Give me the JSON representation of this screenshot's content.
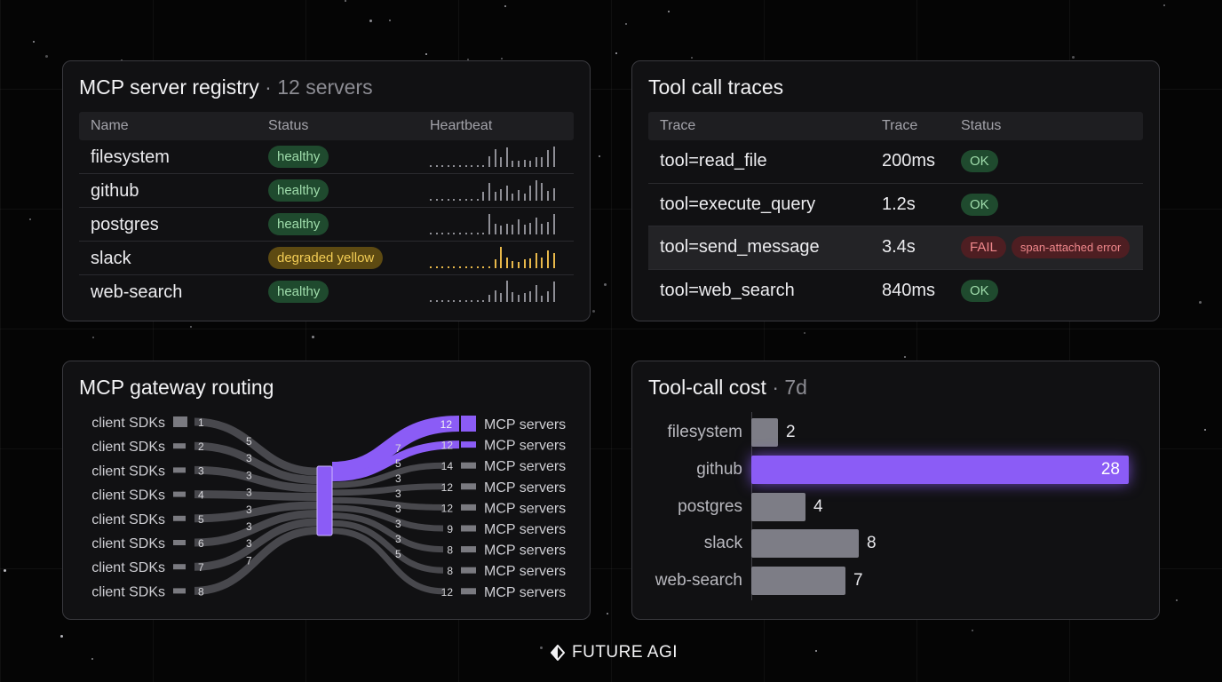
{
  "registry": {
    "title": "MCP server registry",
    "subtitle": "· 12 servers",
    "columns": [
      "Name",
      "Status",
      "Heartbeat"
    ],
    "rows": [
      {
        "name": "filesystem",
        "status": "healthy",
        "tone": "green",
        "heartbeat": [
          0.08,
          0.08,
          0.08,
          0.08,
          0.08,
          0.08,
          0.08,
          0.08,
          0.08,
          0.08,
          0.5,
          0.85,
          0.45,
          0.9,
          0.3,
          0.3,
          0.35,
          0.3,
          0.45,
          0.45,
          0.8,
          0.95
        ]
      },
      {
        "name": "github",
        "status": "healthy",
        "tone": "green",
        "heartbeat": [
          0.08,
          0.08,
          0.08,
          0.08,
          0.08,
          0.08,
          0.08,
          0.08,
          0.08,
          0.4,
          0.85,
          0.4,
          0.55,
          0.7,
          0.35,
          0.5,
          0.35,
          0.7,
          0.95,
          0.85,
          0.45,
          0.6
        ]
      },
      {
        "name": "postgres",
        "status": "healthy",
        "tone": "green",
        "heartbeat": [
          0.08,
          0.08,
          0.08,
          0.08,
          0.08,
          0.08,
          0.08,
          0.08,
          0.08,
          0.08,
          0.95,
          0.5,
          0.4,
          0.5,
          0.45,
          0.7,
          0.45,
          0.55,
          0.8,
          0.5,
          0.6,
          0.95
        ]
      },
      {
        "name": "slack",
        "status": "degraded yellow",
        "tone": "yellow",
        "heartbeat": [
          0.08,
          0.08,
          0.08,
          0.08,
          0.08,
          0.08,
          0.08,
          0.08,
          0.08,
          0.08,
          0.08,
          0.4,
          1.0,
          0.5,
          0.35,
          0.3,
          0.4,
          0.45,
          0.7,
          0.5,
          0.85,
          0.7
        ]
      },
      {
        "name": "web-search",
        "status": "healthy",
        "tone": "green",
        "heartbeat": [
          0.08,
          0.08,
          0.08,
          0.08,
          0.08,
          0.08,
          0.08,
          0.08,
          0.08,
          0.08,
          0.35,
          0.55,
          0.4,
          1.0,
          0.45,
          0.35,
          0.4,
          0.5,
          0.8,
          0.3,
          0.5,
          0.95
        ]
      }
    ]
  },
  "traces": {
    "title": "Tool call traces",
    "columns": [
      "Trace",
      "Trace",
      "Status"
    ],
    "rows": [
      {
        "tool": "tool=read_file",
        "duration": "200ms",
        "status": "OK",
        "tone": "green",
        "note": ""
      },
      {
        "tool": "tool=execute_query",
        "duration": "1.2s",
        "status": "OK",
        "tone": "green",
        "note": ""
      },
      {
        "tool": "tool=send_message",
        "duration": "3.4s",
        "status": "FAIL",
        "tone": "red",
        "note": "span-attached error"
      },
      {
        "tool": "tool=web_search",
        "duration": "840ms",
        "status": "OK",
        "tone": "green",
        "note": ""
      }
    ]
  },
  "routing": {
    "title": "MCP gateway routing",
    "sources": [
      {
        "label": "client SDKs",
        "count": "1",
        "flow": "5"
      },
      {
        "label": "client SDKs",
        "count": "2",
        "flow": "3"
      },
      {
        "label": "client SDKs",
        "count": "3",
        "flow": "3"
      },
      {
        "label": "client SDKs",
        "count": "4",
        "flow": "3"
      },
      {
        "label": "client SDKs",
        "count": "5",
        "flow": "3"
      },
      {
        "label": "client SDKs",
        "count": "6",
        "flow": "3"
      },
      {
        "label": "client SDKs",
        "count": "7",
        "flow": "3"
      },
      {
        "label": "client SDKs",
        "count": "8",
        "flow": "7"
      }
    ],
    "targets": [
      {
        "label": "MCP servers",
        "count": "12",
        "flow": "",
        "highlight": true
      },
      {
        "label": "MCP servers",
        "count": "12",
        "flow": "7",
        "highlight": true
      },
      {
        "label": "MCP servers",
        "count": "14",
        "flow": "5",
        "highlight": false
      },
      {
        "label": "MCP servers",
        "count": "12",
        "flow": "3",
        "highlight": false
      },
      {
        "label": "MCP servers",
        "count": "12",
        "flow": "3",
        "highlight": false
      },
      {
        "label": "MCP servers",
        "count": "9",
        "flow": "3",
        "highlight": false
      },
      {
        "label": "MCP servers",
        "count": "8",
        "flow": "3",
        "highlight": false
      },
      {
        "label": "MCP servers",
        "count": "8",
        "flow": "3",
        "highlight": false
      },
      {
        "label": "MCP servers",
        "count": "12",
        "flow": "5",
        "highlight": false
      }
    ],
    "colors": {
      "accent": "#8b5cf6",
      "flow": "#48484d",
      "node": "#7a7a80"
    }
  },
  "cost": {
    "title": "Tool-call cost",
    "subtitle": "· 7d"
  },
  "chart_data": {
    "type": "bar",
    "orientation": "horizontal",
    "categories": [
      "filesystem",
      "github",
      "postgres",
      "slack",
      "web-search"
    ],
    "values": [
      2,
      28,
      4,
      8,
      7
    ],
    "highlight": "github",
    "colors": {
      "bar": "#7d7d86",
      "highlight": "#8b5cf6"
    }
  },
  "brand": {
    "name": "FUTURE AGI"
  }
}
